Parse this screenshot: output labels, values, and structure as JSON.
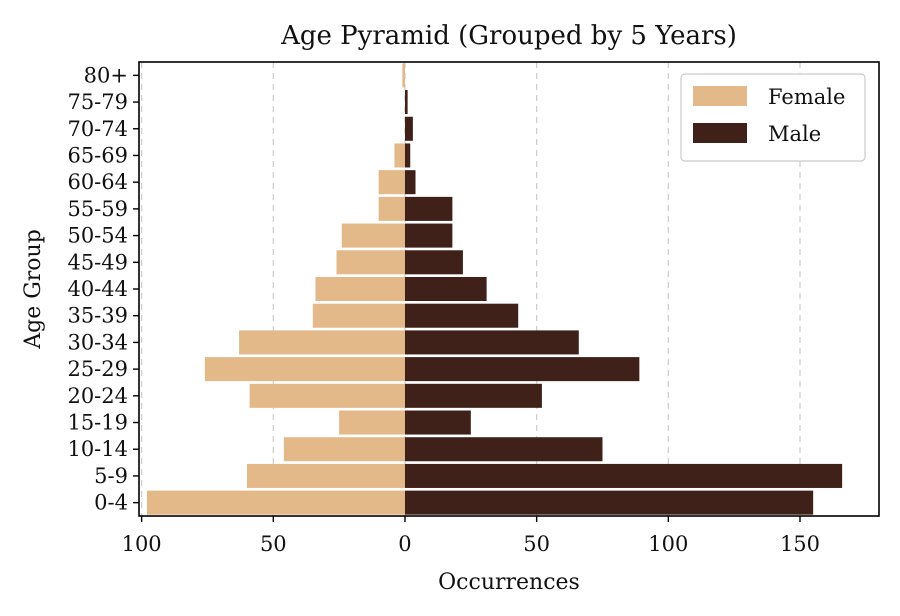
{
  "chart_data": {
    "type": "bar",
    "orientation": "horizontal",
    "title": "Age Pyramid (Grouped by 5 Years)",
    "xlabel": "Occurrences",
    "ylabel": "Age Group",
    "categories": [
      "0-4",
      "5-9",
      "10-14",
      "15-19",
      "20-24",
      "25-29",
      "30-34",
      "35-39",
      "40-44",
      "45-49",
      "50-54",
      "55-59",
      "60-64",
      "65-69",
      "70-74",
      "75-79",
      "80+"
    ],
    "series": [
      {
        "name": "Female",
        "color": "#e3b98a",
        "direction": "left",
        "values": [
          98,
          60,
          46,
          25,
          59,
          76,
          63,
          35,
          34,
          26,
          24,
          10,
          10,
          4,
          0,
          0,
          1
        ]
      },
      {
        "name": "Male",
        "color": "#3f2119",
        "direction": "right",
        "values": [
          155,
          166,
          75,
          25,
          52,
          89,
          66,
          43,
          31,
          22,
          18,
          18,
          4,
          2,
          3,
          1,
          0
        ]
      }
    ],
    "xlim": [
      -101,
      180
    ],
    "xticks": [
      -100,
      -50,
      0,
      50,
      100,
      150
    ],
    "xtick_labels": [
      "100",
      "50",
      "0",
      "50",
      "100",
      "150"
    ],
    "grid": "x-dashed",
    "legend": "upper right"
  }
}
